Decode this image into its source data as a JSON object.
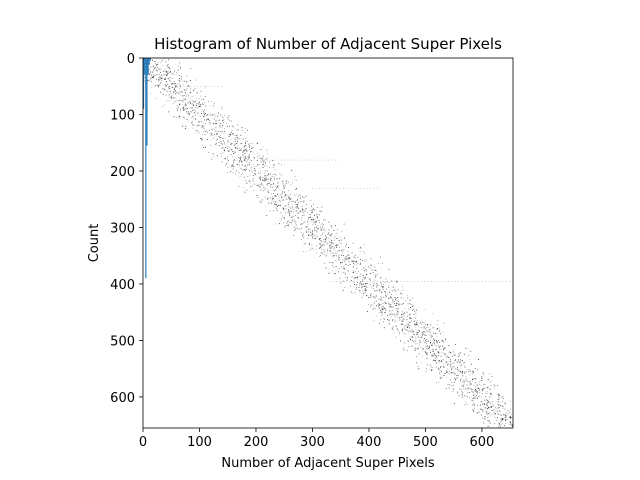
{
  "chart_data": {
    "type": "bar",
    "title": "Histogram of Number of Adjacent Super Pixels",
    "xlabel": "Number of Adjacent Super Pixels",
    "ylabel": "Count",
    "xlim": [
      0,
      655
    ],
    "ylim": [
      655,
      0
    ],
    "y_axis_inverted": true,
    "grid": false,
    "xticks": [
      "0",
      "100",
      "200",
      "300",
      "400",
      "500",
      "600"
    ],
    "yticks": [
      "0",
      "100",
      "200",
      "300",
      "400",
      "500",
      "600"
    ],
    "bar_color": "#1f77b4",
    "bins": [
      {
        "x": 0,
        "width": 2,
        "value": 90
      },
      {
        "x": 2,
        "width": 2,
        "value": 30
      },
      {
        "x": 4,
        "width": 2,
        "value": 390
      },
      {
        "x": 6,
        "width": 2,
        "value": 155
      },
      {
        "x": 8,
        "width": 2,
        "value": 30
      },
      {
        "x": 10,
        "width": 2,
        "value": 12
      },
      {
        "x": 12,
        "width": 2,
        "value": 5
      }
    ],
    "adjacency_overlay": {
      "description_visible": false,
      "point_color": "#000000",
      "band_center_slope": 1.0,
      "band_half_width": 40
    }
  }
}
